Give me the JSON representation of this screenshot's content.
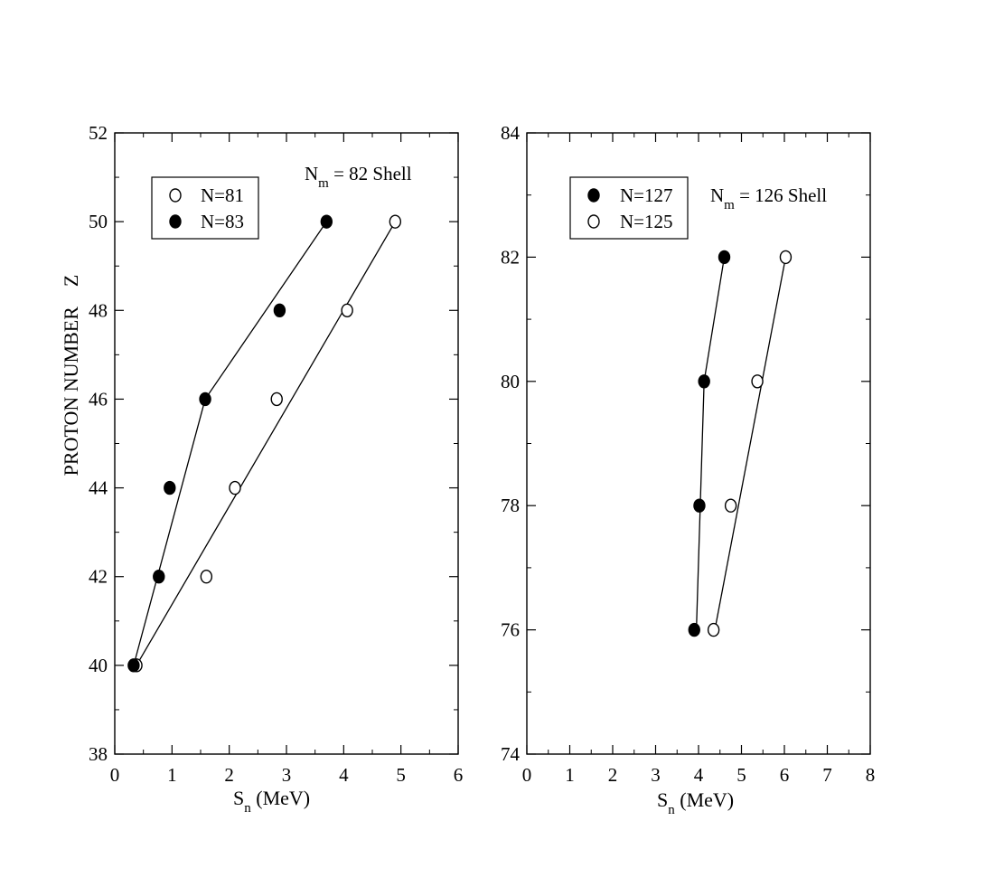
{
  "chart_data": [
    {
      "type": "scatter",
      "annotation": {
        "text": "N",
        "sub": "m",
        "rest": " = 82 Shell"
      },
      "xlabel": {
        "text": "S",
        "sub": "n",
        "rest": " (MeV)"
      },
      "ylabel": "PROTON NUMBER    Z",
      "xlim": [
        0,
        6
      ],
      "ylim": [
        38,
        52
      ],
      "xticks": [
        0,
        1,
        2,
        3,
        4,
        5,
        6
      ],
      "yticks": [
        38,
        40,
        42,
        44,
        46,
        48,
        50,
        52
      ],
      "legend_position": "top-left",
      "series": [
        {
          "name": "N=81",
          "marker": "open-circle",
          "points": [
            [
              0.38,
              40
            ],
            [
              1.6,
              42
            ],
            [
              2.1,
              44
            ],
            [
              2.83,
              46
            ],
            [
              4.06,
              48
            ],
            [
              4.9,
              50
            ]
          ],
          "fit_line": [
            [
              0.38,
              40
            ],
            [
              4.9,
              50
            ]
          ]
        },
        {
          "name": "N=83",
          "marker": "filled-circle",
          "points": [
            [
              0.33,
              40
            ],
            [
              0.77,
              42
            ],
            [
              0.96,
              44
            ],
            [
              1.58,
              46
            ],
            [
              2.88,
              48
            ],
            [
              3.7,
              50
            ]
          ],
          "fit_line": [
            [
              0.33,
              40
            ],
            [
              1.58,
              46
            ],
            [
              3.7,
              50
            ]
          ]
        }
      ]
    },
    {
      "type": "scatter",
      "annotation": {
        "text": "N",
        "sub": "m",
        "rest": " = 126 Shell"
      },
      "xlabel": {
        "text": "S",
        "sub": "n",
        "rest": " (MeV)"
      },
      "ylabel": "",
      "xlim": [
        0,
        8
      ],
      "ylim": [
        74,
        84
      ],
      "xticks": [
        0,
        1,
        2,
        3,
        4,
        5,
        6,
        7,
        8
      ],
      "yticks": [
        74,
        76,
        78,
        80,
        82,
        84
      ],
      "legend_position": "top-left",
      "series": [
        {
          "name": "N=127",
          "marker": "filled-circle",
          "points": [
            [
              3.9,
              76
            ],
            [
              4.02,
              78
            ],
            [
              4.13,
              80
            ],
            [
              4.6,
              82
            ]
          ],
          "fit_line": [
            [
              3.95,
              76
            ],
            [
              4.13,
              80
            ],
            [
              4.6,
              82
            ]
          ]
        },
        {
          "name": "N=125",
          "marker": "open-circle",
          "points": [
            [
              4.35,
              76
            ],
            [
              4.75,
              78
            ],
            [
              5.37,
              80
            ],
            [
              6.03,
              82
            ]
          ],
          "fit_line": [
            [
              4.38,
              76
            ],
            [
              6.03,
              82
            ]
          ]
        }
      ]
    }
  ]
}
